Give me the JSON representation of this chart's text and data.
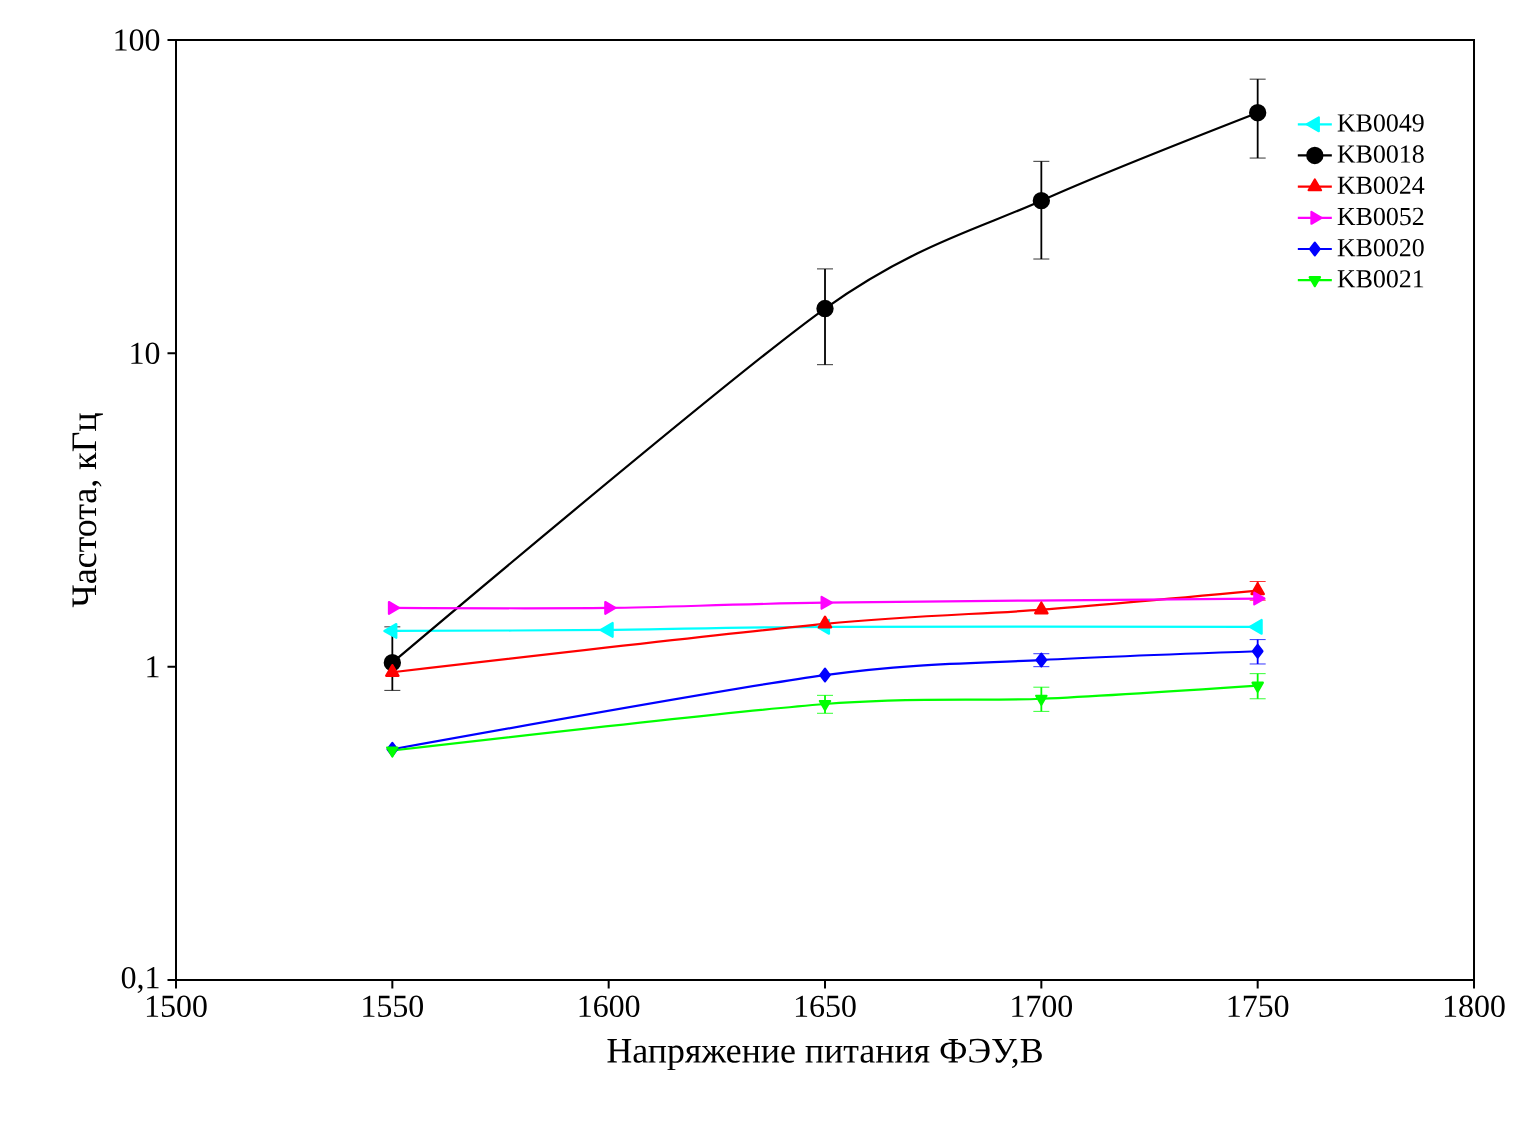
{
  "chart_data": {
    "type": "line",
    "xlabel": "Напряжение питания ФЭУ,В",
    "ylabel": "Частота, кГц",
    "xlim": [
      1500,
      1800
    ],
    "xticks": [
      1500,
      1550,
      1600,
      1650,
      1700,
      1750,
      1800
    ],
    "ylim": [
      0.1,
      100
    ],
    "yticks": [
      {
        "value": 0.1,
        "label": "0,1"
      },
      1,
      10,
      100
    ],
    "log": "y",
    "grid": false,
    "legend": "top right",
    "line_style": "solid",
    "series": [
      {
        "name": "KB0049",
        "color": "#00ffff",
        "marker": "triangle-left",
        "x": [
          1550,
          1600,
          1650,
          1750
        ],
        "values": [
          1.3,
          1.31,
          1.34,
          1.34
        ]
      },
      {
        "name": "KB0018",
        "color": "#000000",
        "marker": "circle",
        "x": [
          1550,
          1650,
          1700,
          1750
        ],
        "values": [
          1.03,
          13.9,
          30.7,
          58.6
        ],
        "errors": [
          [
            0.84,
            1.34
          ],
          [
            9.2,
            18.6
          ],
          [
            20,
            41
          ],
          [
            42,
            75
          ]
        ]
      },
      {
        "name": "KB0024",
        "color": "#ff0000",
        "marker": "triangle",
        "x": [
          1550,
          1650,
          1700,
          1750
        ],
        "values": [
          0.96,
          1.37,
          1.52,
          1.75
        ],
        "errors": [
          null,
          null,
          null,
          0.12
        ]
      },
      {
        "name": "KB0052",
        "color": "#ff00ff",
        "marker": "triangle-right",
        "x": [
          1550,
          1600,
          1650,
          1750
        ],
        "values": [
          1.54,
          1.54,
          1.6,
          1.65
        ]
      },
      {
        "name": "KB0020",
        "color": "#0000ff",
        "marker": "diamond",
        "x": [
          1550,
          1650,
          1700,
          1750
        ],
        "values": [
          0.545,
          0.94,
          1.05,
          1.12
        ],
        "errors": [
          null,
          null,
          0.05,
          0.1
        ]
      },
      {
        "name": "KB0021",
        "color": "#00ff00",
        "marker": "triangle-down",
        "x": [
          1550,
          1650,
          1700,
          1750
        ],
        "values": [
          0.54,
          0.76,
          0.79,
          0.87
        ],
        "errors": [
          null,
          0.05,
          0.07,
          0.08
        ]
      }
    ]
  }
}
